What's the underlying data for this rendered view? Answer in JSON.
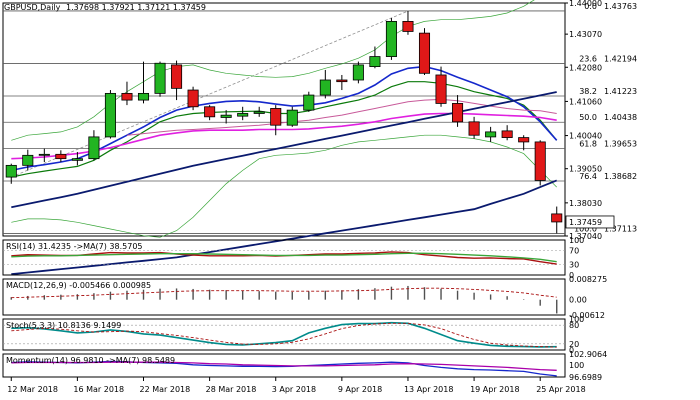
{
  "main_header": {
    "symbol": "GBPUSD,Daily",
    "values": "1.37698 1.37921 1.37121 1.37459"
  },
  "chart_data": [
    {
      "type": "candlestick",
      "ylim": [
        1.3704,
        1.44
      ],
      "y_ticks": [
        1.44,
        1.4307,
        1.4208,
        1.4106,
        1.4004,
        1.3905,
        1.3803,
        1.3704
      ],
      "y_tick_labels": [
        "1.44000",
        "1.43070",
        "1.42080",
        "1.41060",
        "1.40040",
        "1.39050",
        "1.38030",
        "1.37040"
      ],
      "current_price": {
        "label": "1.37459",
        "value": 1.37459
      },
      "x_labels": [
        {
          "i": 0,
          "label": "12 Mar 2018"
        },
        {
          "i": 4,
          "label": "16 Mar 2018"
        },
        {
          "i": 8,
          "label": "22 Mar 2018"
        },
        {
          "i": 12,
          "label": "28 Mar 2018"
        },
        {
          "i": 16,
          "label": "3 Apr 2018"
        },
        {
          "i": 20,
          "label": "9 Apr 2018"
        },
        {
          "i": 24,
          "label": "13 Apr 2018"
        },
        {
          "i": 28,
          "label": "19 Apr 2018"
        },
        {
          "i": 32,
          "label": "25 Apr 2018"
        }
      ],
      "fib_levels": [
        {
          "label": "0.0",
          "value": 1.43763,
          "text": "1.43763"
        },
        {
          "label": "23.6",
          "value": 1.42194,
          "text": "1.42194"
        },
        {
          "label": "38.2",
          "value": 1.41223,
          "text": "1.41223"
        },
        {
          "label": "50.0",
          "value": 1.40438,
          "text": "1.40438"
        },
        {
          "label": "61.8",
          "value": 1.39653,
          "text": "1.39653"
        },
        {
          "label": "76.4",
          "value": 1.38682,
          "text": "1.38682"
        },
        {
          "label": "100.0",
          "value": 1.37113,
          "text": "1.37113"
        }
      ],
      "candles": [
        {
          "o": 1.388,
          "h": 1.392,
          "l": 1.386,
          "c": 1.3915
        },
        {
          "o": 1.3915,
          "h": 1.3962,
          "l": 1.39,
          "c": 1.3945
        },
        {
          "o": 1.3945,
          "h": 1.3965,
          "l": 1.3925,
          "c": 1.3948
        },
        {
          "o": 1.3948,
          "h": 1.396,
          "l": 1.3925,
          "c": 1.3935
        },
        {
          "o": 1.393,
          "h": 1.3955,
          "l": 1.3915,
          "c": 1.3935
        },
        {
          "o": 1.3935,
          "h": 1.402,
          "l": 1.393,
          "c": 1.4
        },
        {
          "o": 1.4,
          "h": 1.414,
          "l": 1.3995,
          "c": 1.413
        },
        {
          "o": 1.413,
          "h": 1.4165,
          "l": 1.4095,
          "c": 1.411
        },
        {
          "o": 1.411,
          "h": 1.4225,
          "l": 1.41,
          "c": 1.413
        },
        {
          "o": 1.413,
          "h": 1.4225,
          "l": 1.412,
          "c": 1.422
        },
        {
          "o": 1.4215,
          "h": 1.4228,
          "l": 1.411,
          "c": 1.4145
        },
        {
          "o": 1.414,
          "h": 1.415,
          "l": 1.408,
          "c": 1.409
        },
        {
          "o": 1.409,
          "h": 1.4095,
          "l": 1.405,
          "c": 1.406
        },
        {
          "o": 1.4058,
          "h": 1.408,
          "l": 1.404,
          "c": 1.4065
        },
        {
          "o": 1.4062,
          "h": 1.409,
          "l": 1.405,
          "c": 1.407
        },
        {
          "o": 1.407,
          "h": 1.409,
          "l": 1.406,
          "c": 1.4075
        },
        {
          "o": 1.4085,
          "h": 1.4095,
          "l": 1.4005,
          "c": 1.4035
        },
        {
          "o": 1.4035,
          "h": 1.409,
          "l": 1.403,
          "c": 1.408
        },
        {
          "o": 1.408,
          "h": 1.4135,
          "l": 1.4075,
          "c": 1.4125
        },
        {
          "o": 1.4125,
          "h": 1.42,
          "l": 1.4115,
          "c": 1.417
        },
        {
          "o": 1.417,
          "h": 1.4185,
          "l": 1.414,
          "c": 1.4165
        },
        {
          "o": 1.417,
          "h": 1.4225,
          "l": 1.416,
          "c": 1.4215
        },
        {
          "o": 1.421,
          "h": 1.427,
          "l": 1.4205,
          "c": 1.424
        },
        {
          "o": 1.424,
          "h": 1.4355,
          "l": 1.423,
          "c": 1.4345
        },
        {
          "o": 1.4345,
          "h": 1.4376,
          "l": 1.4305,
          "c": 1.4315
        },
        {
          "o": 1.431,
          "h": 1.4325,
          "l": 1.4185,
          "c": 1.419
        },
        {
          "o": 1.4185,
          "h": 1.421,
          "l": 1.409,
          "c": 1.41
        },
        {
          "o": 1.41,
          "h": 1.4125,
          "l": 1.403,
          "c": 1.4045
        },
        {
          "o": 1.4045,
          "h": 1.406,
          "l": 1.3995,
          "c": 1.4005
        },
        {
          "o": 1.4,
          "h": 1.403,
          "l": 1.3985,
          "c": 1.4015
        },
        {
          "o": 1.4018,
          "h": 1.4035,
          "l": 1.399,
          "c": 1.3998
        },
        {
          "o": 1.3998,
          "h": 1.4005,
          "l": 1.396,
          "c": 1.3985
        },
        {
          "o": 1.3985,
          "h": 1.399,
          "l": 1.3855,
          "c": 1.387
        },
        {
          "o": 1.377,
          "h": 1.3792,
          "l": 1.3712,
          "c": 1.3746
        }
      ],
      "overlays": [
        {
          "name": "bb_upper",
          "color": "#3aa63a",
          "width": 0.7,
          "values": [
            1.399,
            1.4005,
            1.401,
            1.4015,
            1.403,
            1.406,
            1.41,
            1.4135,
            1.4165,
            1.4195,
            1.421,
            1.4215,
            1.42,
            1.419,
            1.4185,
            1.418,
            1.4178,
            1.418,
            1.419,
            1.4205,
            1.4218,
            1.4235,
            1.426,
            1.43,
            1.433,
            1.4345,
            1.435,
            1.435,
            1.4355,
            1.436,
            1.437,
            1.439,
            1.442,
            1.444
          ]
        },
        {
          "name": "bb_lower",
          "color": "#3aa63a",
          "width": 0.7,
          "values": [
            1.3745,
            1.3755,
            1.3755,
            1.3752,
            1.3745,
            1.3735,
            1.3725,
            1.3715,
            1.3705,
            1.37,
            1.372,
            1.376,
            1.381,
            1.386,
            1.39,
            1.3935,
            1.3945,
            1.3948,
            1.3952,
            1.396,
            1.3975,
            1.3985,
            1.399,
            1.3995,
            1.4,
            1.4005,
            1.4005,
            1.4,
            1.3995,
            1.3985,
            1.397,
            1.395,
            1.39,
            1.385
          ]
        },
        {
          "name": "ema_green",
          "color": "#0b7a0b",
          "width": 1.2,
          "values": [
            1.388,
            1.389,
            1.3898,
            1.3905,
            1.3912,
            1.393,
            1.396,
            1.3985,
            1.4015,
            1.4045,
            1.4062,
            1.407,
            1.4073,
            1.4075,
            1.4076,
            1.4077,
            1.407,
            1.407,
            1.4078,
            1.409,
            1.41,
            1.411,
            1.4125,
            1.415,
            1.4165,
            1.4165,
            1.416,
            1.415,
            1.4135,
            1.4125,
            1.4115,
            1.4095,
            1.405,
            1.399
          ]
        },
        {
          "name": "ma_blue",
          "color": "#1528cc",
          "width": 1.6,
          "values": [
            1.39,
            1.391,
            1.3917,
            1.3925,
            1.3935,
            1.3955,
            1.398,
            1.4005,
            1.403,
            1.4058,
            1.408,
            1.4092,
            1.41,
            1.4106,
            1.4108,
            1.4105,
            1.4098,
            1.4092,
            1.4095,
            1.4102,
            1.4115,
            1.413,
            1.4155,
            1.4188,
            1.4205,
            1.421,
            1.4198,
            1.4178,
            1.416,
            1.414,
            1.412,
            1.409,
            1.4045,
            1.399
          ]
        },
        {
          "name": "ma_magenta",
          "color": "#e020e0",
          "width": 1.6,
          "values": [
            1.3935,
            1.3937,
            1.394,
            1.3945,
            1.395,
            1.3958,
            1.3968,
            1.398,
            1.3993,
            1.4005,
            1.4012,
            1.4018,
            1.402,
            1.402,
            1.402,
            1.4022,
            1.4022,
            1.4022,
            1.4024,
            1.4028,
            1.4032,
            1.4038,
            1.4045,
            1.4055,
            1.4062,
            1.4068,
            1.407,
            1.407,
            1.4068,
            1.4066,
            1.4064,
            1.4062,
            1.4058,
            1.405
          ]
        },
        {
          "name": "ma_pink",
          "color": "#c85a9a",
          "width": 1.0,
          "values": [
            null,
            null,
            null,
            null,
            null,
            null,
            null,
            1.4005,
            1.401,
            1.4015,
            1.402,
            1.4022,
            1.4025,
            1.4028,
            1.4032,
            1.4035,
            1.404,
            1.4045,
            1.405,
            1.4058,
            1.4065,
            1.4075,
            1.4085,
            1.4095,
            1.4105,
            1.411,
            1.4112,
            1.4108,
            1.41,
            1.4092,
            1.4085,
            1.408,
            1.4078,
            1.407
          ]
        },
        {
          "name": "ma_navy",
          "color": "#0a1a6e",
          "width": 1.8,
          "values": [
            1.379,
            1.38,
            1.381,
            1.382,
            1.383,
            1.3842,
            1.3854,
            1.3866,
            1.3878,
            1.389,
            1.3902,
            1.3914,
            1.3924,
            1.3934,
            1.3944,
            1.3954,
            1.3964,
            1.3974,
            1.3984,
            1.3994,
            1.4004,
            1.4014,
            1.4024,
            1.4034,
            1.4044,
            1.4054,
            1.4064,
            1.4074,
            1.4084,
            1.4094,
            1.4104,
            1.4114,
            1.4124,
            1.4134
          ]
        }
      ],
      "ma200_line": {
        "color": "#0a1a6e",
        "values": [
          1.359,
          1.3595,
          1.36,
          1.3605,
          1.361,
          1.3615,
          1.362,
          1.3625,
          1.363,
          1.3635,
          1.364,
          1.3648,
          1.3656,
          1.3664,
          1.3672,
          1.368,
          1.3688,
          1.3696,
          1.3704,
          1.3712,
          1.372,
          1.3728,
          1.3736,
          1.3744,
          1.3752,
          1.376,
          1.3768,
          1.3776,
          1.3784,
          1.38,
          1.3815,
          1.383,
          1.385,
          1.387
        ]
      },
      "trend_lines": [
        {
          "from": [
            0,
            1.388
          ],
          "to": [
            24,
            1.4376
          ],
          "color": "#909090",
          "dash": true
        }
      ]
    },
    {
      "type": "line",
      "title": "RSI(14) 31.4235 ->MA(7) 38.5705",
      "ylim": [
        0,
        100
      ],
      "y_tick_labels": [
        "100",
        "70",
        "30",
        "0"
      ],
      "series": [
        {
          "name": "RSI(14)",
          "color": "#aa1111",
          "values": [
            55,
            58,
            57,
            56,
            56,
            60,
            64,
            63,
            63,
            64,
            60,
            57,
            55,
            55,
            55,
            56,
            54,
            56,
            58,
            60,
            60,
            62,
            63,
            66,
            64,
            58,
            54,
            50,
            48,
            49,
            47,
            46,
            38,
            31
          ]
        },
        {
          "name": "MA(7)",
          "color": "#3aa63a",
          "values": [
            52,
            54,
            55,
            55,
            56,
            57,
            58,
            59,
            60,
            61,
            61,
            61,
            60,
            59,
            58,
            57,
            56,
            56,
            56,
            57,
            57,
            58,
            59,
            61,
            62,
            62,
            61,
            59,
            57,
            55,
            52,
            49,
            45,
            38
          ]
        }
      ]
    },
    {
      "type": "bar",
      "title": "MACD(12,26,9) -0.005466 0.000985",
      "ylim": [
        -0.00612,
        0.008275
      ],
      "y_tick_labels": [
        "0.008275",
        "0.00",
        "-0.00612"
      ],
      "series": [
        {
          "name": "MACD",
          "values": [
            0.001,
            0.0015,
            0.0018,
            0.002,
            0.0022,
            0.0026,
            0.0032,
            0.0036,
            0.004,
            0.0044,
            0.0045,
            0.0043,
            0.004,
            0.0038,
            0.0035,
            0.0034,
            0.0032,
            0.0031,
            0.0033,
            0.0036,
            0.0038,
            0.0042,
            0.0046,
            0.0052,
            0.0055,
            0.005,
            0.0044,
            0.0036,
            0.0028,
            0.0021,
            0.0014,
            0.0002,
            -0.0024,
            -0.0055
          ]
        },
        {
          "name": "Signal",
          "color": "#aa1111",
          "values": [
            0.0008,
            0.001,
            0.0012,
            0.0014,
            0.0016,
            0.0018,
            0.0021,
            0.0024,
            0.0027,
            0.003,
            0.0033,
            0.0035,
            0.0036,
            0.0036,
            0.0036,
            0.0036,
            0.0035,
            0.0034,
            0.0034,
            0.0034,
            0.0035,
            0.0036,
            0.0038,
            0.0041,
            0.0044,
            0.0046,
            0.0046,
            0.0044,
            0.0041,
            0.0037,
            0.0033,
            0.0027,
            0.0018,
            0.001
          ]
        }
      ]
    },
    {
      "type": "line",
      "title": "Stoch(5,3,3) 10.8136 9.1499",
      "ylim": [
        0,
        100
      ],
      "y_tick_labels": [
        "100",
        "80",
        "20",
        "0"
      ],
      "series": [
        {
          "name": "%K",
          "color": "#008b8b",
          "values": [
            70,
            72,
            68,
            62,
            55,
            58,
            65,
            60,
            52,
            48,
            40,
            32,
            24,
            18,
            16,
            20,
            24,
            30,
            55,
            70,
            82,
            85,
            85,
            88,
            86,
            70,
            50,
            30,
            22,
            15,
            12,
            11,
            10,
            10.8
          ]
        },
        {
          "name": "%D",
          "color": "#aa1111",
          "dash": true,
          "values": [
            62,
            66,
            70,
            67,
            62,
            58,
            59,
            61,
            59,
            53,
            47,
            40,
            32,
            25,
            19,
            18,
            20,
            25,
            36,
            52,
            69,
            79,
            84,
            86,
            86,
            81,
            69,
            50,
            34,
            22,
            16,
            13,
            11,
            9.1
          ]
        }
      ]
    },
    {
      "type": "line",
      "title": "Momentum(14) 96.9810 ->MA(7) 98.5489",
      "ylim": [
        96.6989,
        102.9064
      ],
      "y_tick_labels": [
        "102.9064",
        "100",
        "96.6989"
      ],
      "series": [
        {
          "name": "Momentum(14)",
          "color": "#1528cc",
          "values": [
            100.6,
            100.8,
            100.7,
            100.6,
            100.5,
            100.7,
            100.9,
            100.8,
            100.6,
            100.5,
            100.4,
            100.0,
            99.8,
            99.7,
            99.6,
            99.6,
            99.5,
            99.6,
            99.8,
            100.0,
            100.2,
            100.4,
            100.5,
            100.7,
            100.5,
            99.8,
            99.3,
            98.9,
            98.7,
            98.6,
            98.4,
            98.2,
            97.5,
            97.0
          ]
        },
        {
          "name": "MA(7)",
          "color": "#aa00aa",
          "values": [
            100.5,
            100.6,
            100.6,
            100.6,
            100.6,
            100.6,
            100.7,
            100.7,
            100.7,
            100.7,
            100.6,
            100.5,
            100.3,
            100.2,
            100.0,
            99.9,
            99.8,
            99.7,
            99.7,
            99.7,
            99.8,
            99.9,
            100.0,
            100.2,
            100.3,
            100.2,
            100.1,
            99.9,
            99.7,
            99.5,
            99.3,
            99.0,
            98.7,
            98.5
          ]
        }
      ]
    }
  ]
}
